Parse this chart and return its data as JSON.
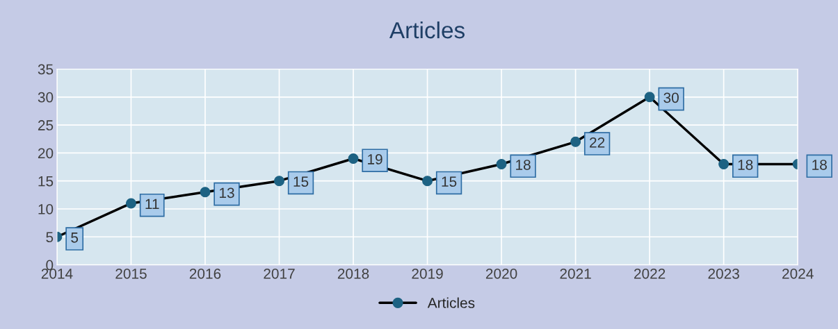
{
  "chart_data": {
    "type": "line",
    "title": "Articles",
    "x": [
      2014,
      2015,
      2016,
      2017,
      2018,
      2019,
      2020,
      2021,
      2022,
      2023,
      2024
    ],
    "series": [
      {
        "name": "Articles",
        "color": "#000000",
        "values": [
          5,
          11,
          13,
          15,
          19,
          15,
          18,
          22,
          30,
          18,
          18
        ]
      }
    ],
    "xlim": [
      2014,
      2024
    ],
    "xticks": [
      2014,
      2015,
      2016,
      2017,
      2018,
      2019,
      2020,
      2021,
      2022,
      2023,
      2024
    ],
    "ylim": [
      0,
      35
    ],
    "yticks": [
      0,
      5,
      10,
      15,
      20,
      25,
      30,
      35
    ],
    "grid": true,
    "legend": "bottom",
    "marker": "circle",
    "line_style": "solid",
    "data_labels": true
  }
}
